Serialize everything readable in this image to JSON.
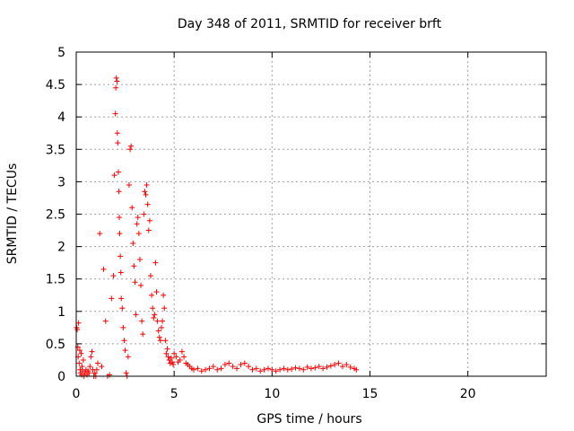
{
  "chart_data": {
    "type": "scatter",
    "title": "Day 348 of 2011, SRMTID for receiver brft",
    "xlabel": "GPS time / hours",
    "ylabel": "SRMTID / TECUs",
    "xlim": [
      0,
      24
    ],
    "ylim": [
      0,
      5
    ],
    "xticks": [
      0,
      5,
      10,
      15,
      20
    ],
    "xtick_labels": [
      "0",
      "5",
      "10",
      "15",
      "20"
    ],
    "yticks": [
      0,
      0.5,
      1,
      1.5,
      2,
      2.5,
      3,
      3.5,
      4,
      4.5,
      5
    ],
    "ytick_labels": [
      "0",
      "0.5",
      "1",
      "1.5",
      "2",
      "2.5",
      "3",
      "3.5",
      "4",
      "4.5",
      "5"
    ],
    "grid": true,
    "marker": "plus",
    "series": [
      {
        "name": "SRMTID",
        "color": "#ff0000",
        "x": [
          0.02,
          0.05,
          0.08,
          0.1,
          0.12,
          0.15,
          0.18,
          0.2,
          0.22,
          0.25,
          0.28,
          0.3,
          0.33,
          0.36,
          0.4,
          0.45,
          0.5,
          0.55,
          0.6,
          0.65,
          0.7,
          0.75,
          0.8,
          0.85,
          0.9,
          0.95,
          1.0,
          1.05,
          1.1,
          1.2,
          1.3,
          1.4,
          1.5,
          1.6,
          1.7,
          1.8,
          1.9,
          1.95,
          2.0,
          2.02,
          2.05,
          2.08,
          2.1,
          2.12,
          2.15,
          2.18,
          2.2,
          2.22,
          2.25,
          2.28,
          2.3,
          2.35,
          2.4,
          2.45,
          2.5,
          2.55,
          2.6,
          2.65,
          2.7,
          2.75,
          2.8,
          2.85,
          2.9,
          2.95,
          3.0,
          3.05,
          3.1,
          3.15,
          3.2,
          3.25,
          3.3,
          3.35,
          3.4,
          3.45,
          3.5,
          3.55,
          3.6,
          3.65,
          3.7,
          3.75,
          3.8,
          3.85,
          3.9,
          3.95,
          4.0,
          4.05,
          4.1,
          4.15,
          4.2,
          4.25,
          4.3,
          4.35,
          4.4,
          4.45,
          4.5,
          4.55,
          4.6,
          4.65,
          4.7,
          4.75,
          4.8,
          4.85,
          4.9,
          4.95,
          5.0,
          5.1,
          5.2,
          5.3,
          5.4,
          5.5,
          5.6,
          5.7,
          5.8,
          5.9,
          6.0,
          6.2,
          6.4,
          6.6,
          6.8,
          7.0,
          7.2,
          7.4,
          7.6,
          7.8,
          8.0,
          8.2,
          8.4,
          8.6,
          8.8,
          9.0,
          9.2,
          9.4,
          9.6,
          9.8,
          10.0,
          10.2,
          10.4,
          10.6,
          10.8,
          11.0,
          11.2,
          11.4,
          11.6,
          11.8,
          12.0,
          12.2,
          12.4,
          12.6,
          12.8,
          13.0,
          13.2,
          13.4,
          13.6,
          13.8,
          14.0,
          14.2,
          14.3
        ],
        "y": [
          0.75,
          0.72,
          0.45,
          0.3,
          0.82,
          0.2,
          0.4,
          0.1,
          0.05,
          0.35,
          0.02,
          0.15,
          0.08,
          0.25,
          0.0,
          0.05,
          0.1,
          0.02,
          0.08,
          0.05,
          0.15,
          0.3,
          0.38,
          0.1,
          0.0,
          0.05,
          0.0,
          0.1,
          0.2,
          2.2,
          0.15,
          1.65,
          0.85,
          0.0,
          0.02,
          1.2,
          1.55,
          3.1,
          4.05,
          4.45,
          4.6,
          4.55,
          3.75,
          3.6,
          3.15,
          2.85,
          2.45,
          2.2,
          1.85,
          1.6,
          1.2,
          1.05,
          0.75,
          0.55,
          0.4,
          0.05,
          0.0,
          0.3,
          2.95,
          3.5,
          3.55,
          2.6,
          2.05,
          1.7,
          1.45,
          0.95,
          2.35,
          2.45,
          2.2,
          1.8,
          1.4,
          0.85,
          0.65,
          2.5,
          2.85,
          2.8,
          2.95,
          2.65,
          2.25,
          2.4,
          1.55,
          1.25,
          1.05,
          0.9,
          0.95,
          1.75,
          1.3,
          0.85,
          0.7,
          0.6,
          0.55,
          0.75,
          0.85,
          1.25,
          1.05,
          0.55,
          0.35,
          0.42,
          0.3,
          0.25,
          0.2,
          0.28,
          0.22,
          0.18,
          0.35,
          0.3,
          0.22,
          0.25,
          0.38,
          0.3,
          0.2,
          0.18,
          0.15,
          0.12,
          0.1,
          0.12,
          0.08,
          0.1,
          0.12,
          0.15,
          0.1,
          0.12,
          0.18,
          0.2,
          0.15,
          0.12,
          0.18,
          0.2,
          0.15,
          0.1,
          0.12,
          0.08,
          0.1,
          0.12,
          0.1,
          0.08,
          0.1,
          0.12,
          0.1,
          0.11,
          0.13,
          0.12,
          0.1,
          0.14,
          0.12,
          0.13,
          0.15,
          0.12,
          0.14,
          0.16,
          0.18,
          0.2,
          0.15,
          0.18,
          0.14,
          0.12,
          0.1
        ]
      }
    ]
  }
}
